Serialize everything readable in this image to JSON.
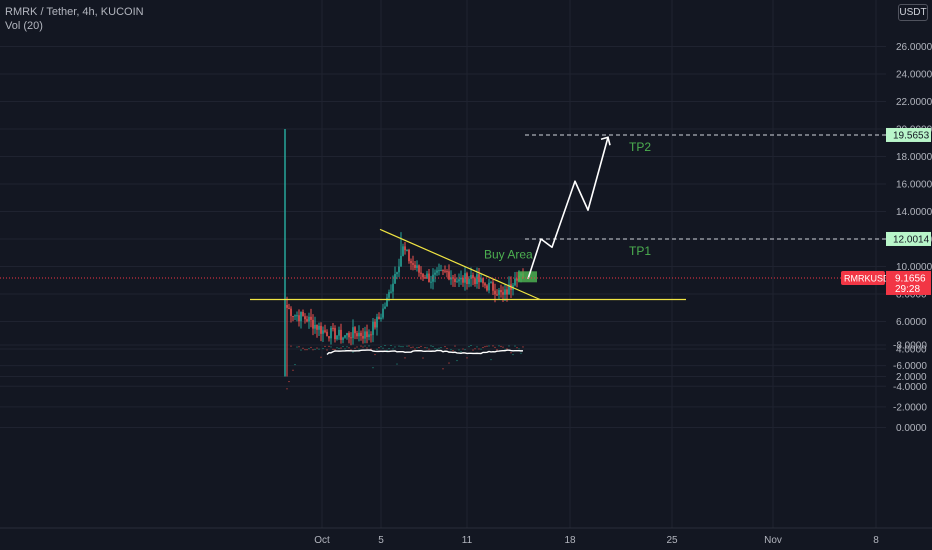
{
  "header": {
    "symbol_line": "RMRK / Tether, 4h, KUCOIN",
    "volume_line": "Vol (20)",
    "currency_button": "USDT"
  },
  "colors": {
    "background": "#131722",
    "grid": "#1f2330",
    "axis_text": "#b2b5be",
    "up": "#26a69a",
    "down": "#ef5350",
    "volume_up": "#1c6f66",
    "volume_down": "#a03a39",
    "trendline": "#f0e442",
    "target_line": "#d1d4dc",
    "target_badge": "#b9f6ca",
    "annotation_green": "#4caf50",
    "price_badge": "#f23645",
    "vol_ma": "#ffffff"
  },
  "chart_data": {
    "type": "candlestick",
    "symbol": "RMRKUSDT",
    "timeframe": "4h",
    "exchange": "KUCOIN",
    "x_ticks": [
      "Oct",
      "5",
      "11",
      "18",
      "25",
      "Nov",
      "8"
    ],
    "price_ticks": [
      "26.0000",
      "24.0000",
      "22.0000",
      "20.0000",
      "18.0000",
      "16.0000",
      "14.0000",
      "12.0000",
      "10.0000",
      "8.0000",
      "6.0000",
      "4.0000",
      "2.0000"
    ],
    "volume_ticks": [
      "0.0000",
      "-2.0000",
      "-4.0000",
      "-6.0000",
      "-8.0000"
    ],
    "price_ylim": [
      1.5,
      28
    ],
    "candles_summary": {
      "launch_spike_high": 20.0,
      "launch_low": 2.0,
      "early_range": [
        4.5,
        7.5
      ],
      "pump_high": 12.5,
      "consolidation_range": [
        7.5,
        10.5
      ],
      "last_close": 9.1656
    },
    "last_price": {
      "symbol_label": "RMRKUSDT",
      "value": "9.1656",
      "countdown": "29:28"
    },
    "levels": [
      {
        "name": "TP2",
        "label": "TP2",
        "price": 19.5653,
        "badge": "19.5653"
      },
      {
        "name": "TP1",
        "label": "TP1",
        "price": 12.0014,
        "badge": "12.0014"
      },
      {
        "name": "support",
        "price": 7.6
      }
    ],
    "annotations": {
      "buy_area_label": "Buy Area",
      "tp1_label": "TP1",
      "tp2_label": "TP2",
      "projection_path": [
        [
          0,
          9.1
        ],
        [
          1,
          11.9
        ],
        [
          1.4,
          11.3
        ],
        [
          2.3,
          16.2
        ],
        [
          2.6,
          14.1
        ],
        [
          3.5,
          19.5
        ]
      ]
    },
    "volume_ma_length": 20
  }
}
